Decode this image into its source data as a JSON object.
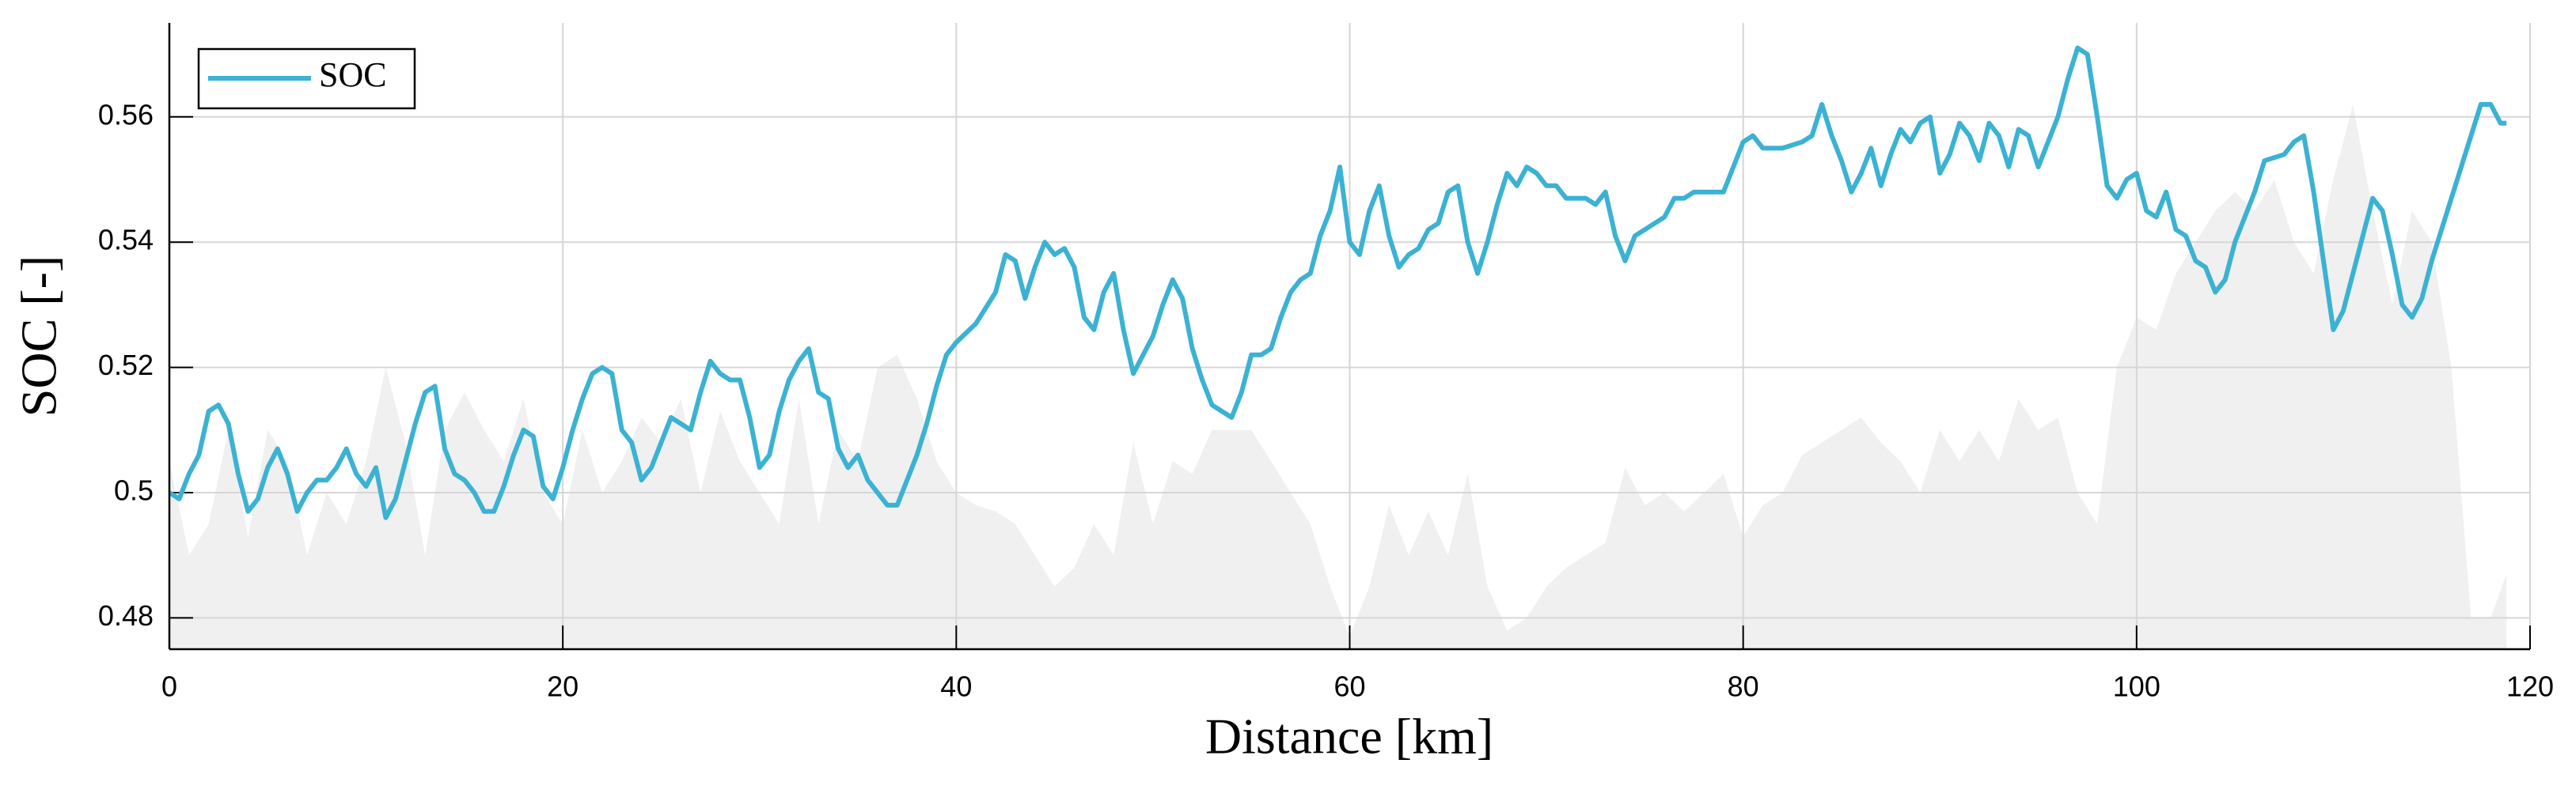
{
  "chart_data": {
    "type": "line",
    "xlabel": "Distance [km]",
    "ylabel": "SOC [-]",
    "xlim": [
      0,
      120
    ],
    "xticks": [
      0,
      20,
      40,
      60,
      80,
      100,
      120
    ],
    "ylim": [
      0.475,
      0.575
    ],
    "yticks": [
      0.48,
      0.5,
      0.52,
      0.54,
      0.56
    ],
    "grid": true,
    "legend": "upper left",
    "series": [
      {
        "style": "area",
        "color": "#f0f0f0",
        "x": [
          0,
          1,
          2,
          3,
          4,
          5,
          6,
          7,
          8,
          9,
          10,
          11,
          12,
          13,
          14,
          15,
          16,
          17,
          18,
          19,
          20,
          21,
          22,
          23,
          24,
          25,
          26,
          27,
          28,
          29,
          30,
          31,
          32,
          33,
          34,
          35,
          36,
          37,
          38,
          39,
          40,
          41,
          42,
          43,
          44,
          45,
          46,
          47,
          48,
          49,
          50,
          51,
          52,
          53,
          54,
          55,
          56,
          57,
          58,
          59,
          60,
          61,
          62,
          63,
          64,
          65,
          66,
          67,
          68,
          69,
          70,
          71,
          72,
          73,
          74,
          75,
          76,
          77,
          78,
          79,
          80,
          81,
          82,
          83,
          84,
          85,
          86,
          87,
          88,
          89,
          90,
          91,
          92,
          93,
          94,
          95,
          96,
          97,
          98,
          99,
          100,
          101,
          102,
          103,
          104,
          105,
          106,
          107,
          108,
          109,
          110,
          111,
          112,
          113,
          114,
          115,
          116,
          117,
          118,
          118.8
        ],
        "values": [
          0.505,
          0.49,
          0.495,
          0.51,
          0.493,
          0.51,
          0.505,
          0.49,
          0.5,
          0.495,
          0.505,
          0.52,
          0.508,
          0.49,
          0.51,
          0.516,
          0.51,
          0.505,
          0.515,
          0.5,
          0.495,
          0.51,
          0.5,
          0.505,
          0.512,
          0.508,
          0.515,
          0.5,
          0.513,
          0.505,
          0.5,
          0.495,
          0.515,
          0.495,
          0.51,
          0.505,
          0.52,
          0.522,
          0.515,
          0.505,
          0.5,
          0.498,
          0.497,
          0.495,
          0.49,
          0.485,
          0.488,
          0.495,
          0.49,
          0.508,
          0.495,
          0.505,
          0.503,
          0.51,
          0.51,
          0.51,
          0.505,
          0.5,
          0.495,
          0.485,
          0.477,
          0.485,
          0.498,
          0.49,
          0.497,
          0.49,
          0.503,
          0.485,
          0.478,
          0.48,
          0.485,
          0.488,
          0.49,
          0.492,
          0.504,
          0.498,
          0.5,
          0.497,
          0.5,
          0.503,
          0.493,
          0.498,
          0.5,
          0.506,
          0.508,
          0.51,
          0.512,
          0.508,
          0.505,
          0.5,
          0.51,
          0.505,
          0.51,
          0.505,
          0.515,
          0.51,
          0.512,
          0.5,
          0.495,
          0.52,
          0.528,
          0.526,
          0.535,
          0.54,
          0.545,
          0.548,
          0.545,
          0.55,
          0.54,
          0.535,
          0.55,
          0.562,
          0.545,
          0.53,
          0.545,
          0.54,
          0.52,
          0.48,
          0.48,
          0.487
        ]
      },
      {
        "name": "SOC",
        "color": "#3bb2d3",
        "x": [
          0,
          0.5,
          1,
          1.5,
          2,
          2.5,
          3,
          3.5,
          4,
          4.5,
          5,
          5.5,
          6,
          6.5,
          7,
          7.5,
          8,
          8.5,
          9,
          9.5,
          10,
          10.5,
          11,
          11.5,
          12,
          12.5,
          13,
          13.5,
          14,
          14.5,
          15,
          15.5,
          16,
          16.5,
          17,
          17.5,
          18,
          18.5,
          19,
          19.5,
          20,
          20.5,
          21,
          21.5,
          22,
          22.5,
          23,
          23.5,
          24,
          24.5,
          25,
          25.5,
          26,
          26.5,
          27,
          27.5,
          28,
          28.5,
          29,
          29.5,
          30,
          30.5,
          31,
          31.5,
          32,
          32.5,
          33,
          33.5,
          34,
          34.5,
          35,
          35.5,
          36,
          36.5,
          37,
          37.5,
          38,
          38.5,
          39,
          39.5,
          40,
          41,
          42,
          42.5,
          43,
          43.5,
          44,
          44.5,
          45,
          45.5,
          46,
          46.5,
          47,
          47.5,
          48,
          48.5,
          49,
          49.5,
          50,
          50.5,
          51,
          51.5,
          52,
          52.5,
          53,
          53.5,
          54,
          54.5,
          55,
          55.5,
          56,
          56.5,
          57,
          57.5,
          58,
          58.5,
          59,
          59.5,
          60,
          60.5,
          61,
          61.5,
          62,
          62.5,
          63,
          63.5,
          64,
          64.5,
          65,
          65.5,
          66,
          66.5,
          67,
          67.5,
          68,
          68.5,
          69,
          69.5,
          70,
          70.5,
          71,
          72,
          72.5,
          73,
          73.5,
          74,
          74.5,
          75,
          76,
          76.5,
          77,
          77.5,
          78,
          78.5,
          79,
          79.5,
          80,
          80.5,
          81,
          82,
          83,
          83.5,
          84,
          84.5,
          85,
          85.5,
          86,
          86.5,
          87,
          87.5,
          88,
          88.5,
          89,
          89.5,
          90,
          90.5,
          91,
          91.5,
          92,
          92.5,
          93,
          93.5,
          94,
          94.5,
          95,
          95.5,
          96,
          96.5,
          97,
          97.5,
          98,
          98.5,
          99,
          99.5,
          100,
          100.5,
          101,
          101.5,
          102,
          102.5,
          103,
          103.5,
          104,
          104.5,
          105,
          106,
          106.5,
          107.5,
          108,
          108.5,
          109,
          109.5,
          110,
          110.5,
          111,
          112,
          112.5,
          113,
          113.5,
          114,
          114.5,
          115,
          116,
          117,
          117.5,
          118,
          118.5,
          118.8
        ],
        "values": [
          0.5,
          0.499,
          0.503,
          0.506,
          0.513,
          0.514,
          0.511,
          0.503,
          0.497,
          0.499,
          0.504,
          0.507,
          0.503,
          0.497,
          0.5,
          0.502,
          0.502,
          0.504,
          0.507,
          0.503,
          0.501,
          0.504,
          0.496,
          0.499,
          0.505,
          0.511,
          0.516,
          0.517,
          0.507,
          0.503,
          0.502,
          0.5,
          0.497,
          0.497,
          0.501,
          0.506,
          0.51,
          0.509,
          0.501,
          0.499,
          0.504,
          0.51,
          0.515,
          0.519,
          0.52,
          0.519,
          0.51,
          0.508,
          0.502,
          0.504,
          0.508,
          0.512,
          0.511,
          0.51,
          0.516,
          0.521,
          0.519,
          0.518,
          0.518,
          0.512,
          0.504,
          0.506,
          0.513,
          0.518,
          0.521,
          0.523,
          0.516,
          0.515,
          0.507,
          0.504,
          0.506,
          0.502,
          0.5,
          0.498,
          0.498,
          0.502,
          0.506,
          0.511,
          0.517,
          0.522,
          0.524,
          0.527,
          0.532,
          0.538,
          0.537,
          0.531,
          0.536,
          0.54,
          0.538,
          0.539,
          0.536,
          0.528,
          0.526,
          0.532,
          0.535,
          0.526,
          0.519,
          0.522,
          0.525,
          0.53,
          0.534,
          0.531,
          0.523,
          0.518,
          0.514,
          0.513,
          0.512,
          0.516,
          0.522,
          0.522,
          0.523,
          0.528,
          0.532,
          0.534,
          0.535,
          0.541,
          0.545,
          0.552,
          0.54,
          0.538,
          0.545,
          0.549,
          0.541,
          0.536,
          0.538,
          0.539,
          0.542,
          0.543,
          0.548,
          0.549,
          0.54,
          0.535,
          0.54,
          0.546,
          0.551,
          0.549,
          0.552,
          0.551,
          0.549,
          0.549,
          0.547,
          0.547,
          0.546,
          0.548,
          0.541,
          0.537,
          0.541,
          0.542,
          0.544,
          0.547,
          0.547,
          0.548,
          0.548,
          0.548,
          0.548,
          0.552,
          0.556,
          0.557,
          0.555,
          0.555,
          0.556,
          0.557,
          0.562,
          0.557,
          0.553,
          0.548,
          0.551,
          0.555,
          0.549,
          0.554,
          0.558,
          0.556,
          0.559,
          0.56,
          0.551,
          0.554,
          0.559,
          0.557,
          0.553,
          0.559,
          0.557,
          0.552,
          0.558,
          0.557,
          0.552,
          0.556,
          0.56,
          0.566,
          0.571,
          0.57,
          0.56,
          0.549,
          0.547,
          0.55,
          0.551,
          0.545,
          0.544,
          0.548,
          0.542,
          0.541,
          0.537,
          0.536,
          0.532,
          0.534,
          0.54,
          0.548,
          0.553,
          0.554,
          0.556,
          0.557,
          0.548,
          0.537,
          0.526,
          0.529,
          0.535,
          0.547,
          0.545,
          0.538,
          0.53,
          0.528,
          0.531,
          0.537,
          0.547,
          0.557,
          0.562,
          0.562,
          0.559,
          0.559
        ]
      }
    ]
  }
}
